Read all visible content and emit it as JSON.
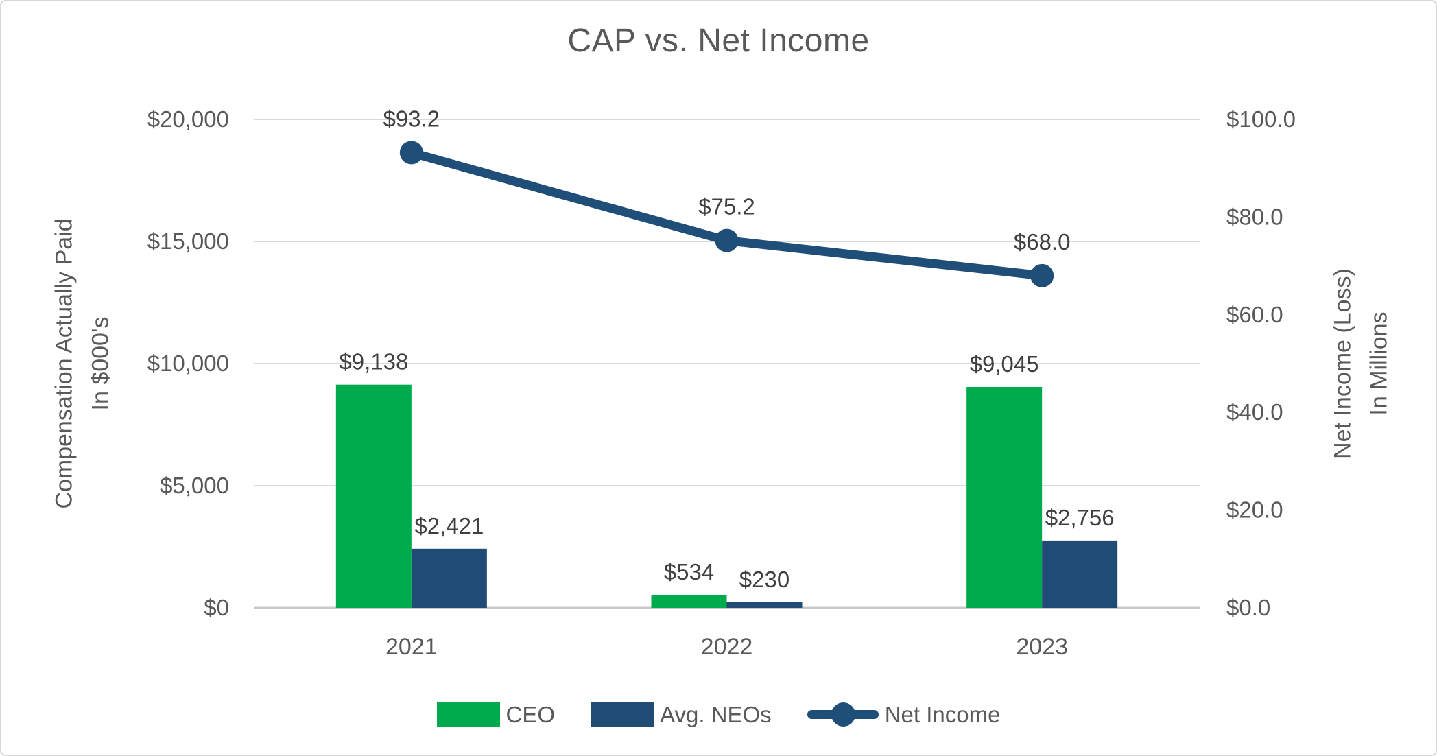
{
  "chart_data": {
    "type": "combo-bar-line",
    "title": "CAP vs. Net Income",
    "categories": [
      "2021",
      "2022",
      "2023"
    ],
    "series": [
      {
        "name": "CEO",
        "type": "bar",
        "axis": "left",
        "color": "#00AB4E",
        "values": [
          9138,
          534,
          9045
        ],
        "labels": [
          "$9,138",
          "$534",
          "$9,045"
        ]
      },
      {
        "name": "Avg. NEOs",
        "type": "bar",
        "axis": "left",
        "color": "#1F4B75",
        "values": [
          2421,
          230,
          2756
        ],
        "labels": [
          "$2,421",
          "$230",
          "$2,756"
        ]
      },
      {
        "name": "Net Income",
        "type": "line",
        "axis": "right",
        "color": "#1F4E79",
        "values": [
          93.2,
          75.2,
          68.0
        ],
        "labels": [
          "$93.2",
          "$75.2",
          "$68.0"
        ]
      }
    ],
    "left_axis": {
      "title_lines": [
        "Compensation Actually Paid",
        "In $000's"
      ],
      "ticks": [
        "$0",
        "$5,000",
        "$10,000",
        "$15,000",
        "$20,000"
      ],
      "tick_values": [
        0,
        5000,
        10000,
        15000,
        20000
      ],
      "min": 0,
      "max": 20000
    },
    "right_axis": {
      "title_lines": [
        "Net Income (Loss)",
        "In Millions"
      ],
      "ticks": [
        "$0.0",
        "$20.0",
        "$40.0",
        "$60.0",
        "$80.0",
        "$100.0"
      ],
      "tick_values": [
        0,
        20,
        40,
        60,
        80,
        100
      ],
      "min": 0,
      "max": 100
    },
    "legend": [
      {
        "label": "CEO",
        "marker": "swatch",
        "color": "#00AB4E"
      },
      {
        "label": "Avg. NEOs",
        "marker": "swatch",
        "color": "#1F4B75"
      },
      {
        "label": "Net Income",
        "marker": "line-dot",
        "color": "#1F4E79"
      }
    ],
    "grid": true,
    "legend_position": "bottom",
    "colors": {
      "text": "#595959",
      "data_label": "#404040",
      "gridline": "#D9D9D9",
      "axis_line": "#C9C9C9",
      "ceo_green": "#00AB4E",
      "neo_navy": "#1F4B75",
      "net_income_navy": "#1F4E79"
    }
  }
}
